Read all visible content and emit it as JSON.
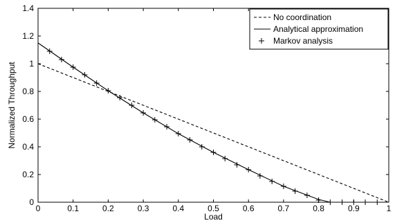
{
  "chart_data": {
    "type": "line",
    "title": "",
    "xlabel": "Load",
    "ylabel": "Normalized Throughput",
    "xlim": [
      0,
      1
    ],
    "ylim": [
      0,
      1.4
    ],
    "grid": false,
    "legend_position": "top-right",
    "xticks": [
      0,
      0.1,
      0.2,
      0.3,
      0.4,
      0.5,
      0.6,
      0.7,
      0.8,
      0.9,
      1
    ],
    "xtick_labels": [
      "0",
      "0.1",
      "0.2",
      "0.3",
      "0.4",
      "0.5",
      "0.6",
      "0.7",
      "0.8",
      "0.9",
      "1"
    ],
    "yticks": [
      0,
      0.2,
      0.4,
      0.6,
      0.8,
      1,
      1.2,
      1.4
    ],
    "ytick_labels": [
      "0",
      "0.2",
      "0.4",
      "0.6",
      "0.8",
      "1",
      "1.2",
      "1.4"
    ],
    "series": [
      {
        "name": "No coordination",
        "style": "dashed",
        "color": "#000000",
        "x": [
          0,
          1
        ],
        "y": [
          1.0,
          0.0
        ]
      },
      {
        "name": "Analytical approximation",
        "style": "solid",
        "color": "#000000",
        "x": [
          0,
          0.1,
          0.2,
          0.3,
          0.4,
          0.5,
          0.6,
          0.7,
          0.8,
          0.833
        ],
        "y": [
          1.15,
          0.975,
          0.805,
          0.645,
          0.495,
          0.36,
          0.235,
          0.115,
          0.02,
          0.0
        ]
      },
      {
        "name": "Markov analysis",
        "style": "markers",
        "marker": "+",
        "color": "#000000",
        "x": [
          0.033,
          0.067,
          0.1,
          0.133,
          0.167,
          0.2,
          0.233,
          0.267,
          0.3,
          0.333,
          0.367,
          0.4,
          0.433,
          0.467,
          0.5,
          0.533,
          0.567,
          0.6,
          0.633,
          0.667,
          0.7,
          0.733,
          0.767,
          0.8,
          0.833,
          0.867,
          0.9,
          0.933,
          0.967
        ],
        "y": [
          1.09,
          1.03,
          0.975,
          0.92,
          0.86,
          0.805,
          0.755,
          0.7,
          0.645,
          0.595,
          0.545,
          0.495,
          0.45,
          0.4,
          0.36,
          0.315,
          0.27,
          0.235,
          0.19,
          0.15,
          0.115,
          0.08,
          0.05,
          0.015,
          0.0,
          0.0,
          0.0,
          0.0,
          0.0
        ]
      }
    ]
  }
}
